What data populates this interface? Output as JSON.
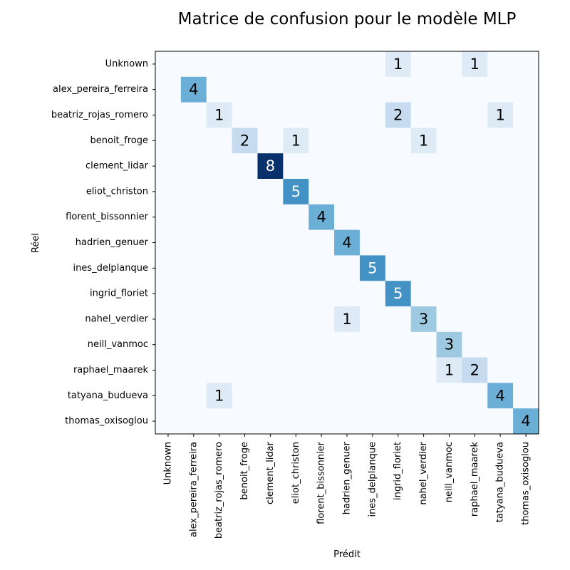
{
  "chart_data": {
    "type": "heatmap",
    "title": "Matrice de confusion pour le modèle MLP",
    "xlabel": "Prédit",
    "ylabel": "Réel",
    "labels": [
      "Unknown",
      "alex_pereira_ferreira",
      "beatriz_rojas_romero",
      "benoit_froge",
      "clement_lidar",
      "eliot_christon",
      "florent_bissonnier",
      "hadrien_genuer",
      "ines_delplanque",
      "ingrid_floriet",
      "nahel_verdier",
      "neill_vanmoc",
      "raphael_maarek",
      "tatyana_budueva",
      "thomas_oxisoglou"
    ],
    "matrix": [
      [
        0,
        0,
        0,
        0,
        0,
        0,
        0,
        0,
        0,
        1,
        0,
        0,
        1,
        0,
        0
      ],
      [
        0,
        4,
        0,
        0,
        0,
        0,
        0,
        0,
        0,
        0,
        0,
        0,
        0,
        0,
        0
      ],
      [
        0,
        0,
        1,
        0,
        0,
        0,
        0,
        0,
        0,
        2,
        0,
        0,
        0,
        1,
        0
      ],
      [
        0,
        0,
        0,
        2,
        0,
        1,
        0,
        0,
        0,
        0,
        1,
        0,
        0,
        0,
        0
      ],
      [
        0,
        0,
        0,
        0,
        8,
        0,
        0,
        0,
        0,
        0,
        0,
        0,
        0,
        0,
        0
      ],
      [
        0,
        0,
        0,
        0,
        0,
        5,
        0,
        0,
        0,
        0,
        0,
        0,
        0,
        0,
        0
      ],
      [
        0,
        0,
        0,
        0,
        0,
        0,
        4,
        0,
        0,
        0,
        0,
        0,
        0,
        0,
        0
      ],
      [
        0,
        0,
        0,
        0,
        0,
        0,
        0,
        4,
        0,
        0,
        0,
        0,
        0,
        0,
        0
      ],
      [
        0,
        0,
        0,
        0,
        0,
        0,
        0,
        0,
        5,
        0,
        0,
        0,
        0,
        0,
        0
      ],
      [
        0,
        0,
        0,
        0,
        0,
        0,
        0,
        0,
        0,
        5,
        0,
        0,
        0,
        0,
        0
      ],
      [
        0,
        0,
        0,
        0,
        0,
        0,
        0,
        1,
        0,
        0,
        3,
        0,
        0,
        0,
        0
      ],
      [
        0,
        0,
        0,
        0,
        0,
        0,
        0,
        0,
        0,
        0,
        0,
        3,
        0,
        0,
        0
      ],
      [
        0,
        0,
        0,
        0,
        0,
        0,
        0,
        0,
        0,
        0,
        0,
        1,
        2,
        0,
        0
      ],
      [
        0,
        0,
        1,
        0,
        0,
        0,
        0,
        0,
        0,
        0,
        0,
        0,
        0,
        4,
        0
      ],
      [
        0,
        0,
        0,
        0,
        0,
        0,
        0,
        0,
        0,
        0,
        0,
        0,
        0,
        0,
        4
      ]
    ],
    "value_range": [
      0,
      8
    ],
    "colormap": "Blues",
    "grid": true
  }
}
